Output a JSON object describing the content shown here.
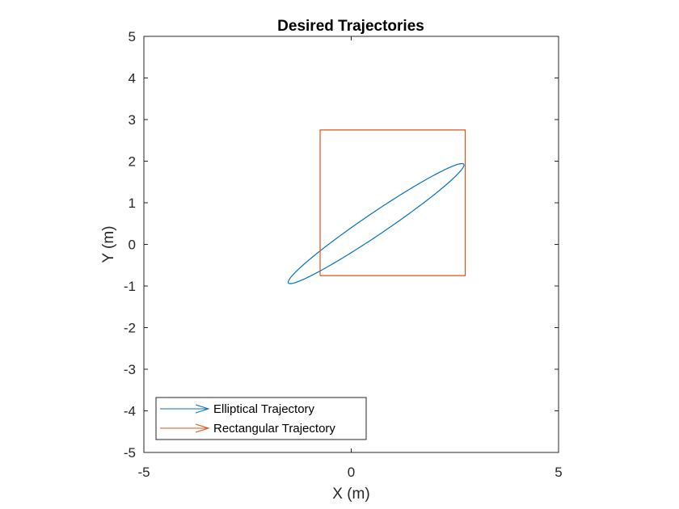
{
  "chart_data": {
    "type": "line",
    "title": "Desired Trajectories",
    "xlabel": "X (m)",
    "ylabel": "Y (m)",
    "xlim": [
      -5,
      5
    ],
    "ylim": [
      -5,
      5
    ],
    "x_ticks": [
      "-5",
      "0",
      "5"
    ],
    "y_ticks": [
      "5",
      "4",
      "3",
      "2",
      "1",
      "0",
      "-1",
      "-2",
      "-3",
      "-4",
      "-5"
    ],
    "grid": false,
    "legend_position": "bottom-left",
    "series": [
      {
        "name": "Elliptical Trajectory",
        "color": "#0072BD",
        "shape": "ellipse",
        "center": [
          0.6,
          0.5
        ],
        "semi_major": 2.55,
        "semi_minor": 0.26,
        "rotation_deg": 34
      },
      {
        "name": "Rectangular Trajectory",
        "color": "#D95319",
        "shape": "polyline",
        "x": [
          -0.75,
          2.75,
          2.75,
          -0.75,
          -0.75
        ],
        "y": [
          -0.75,
          -0.75,
          2.75,
          2.75,
          -0.75
        ]
      }
    ]
  }
}
